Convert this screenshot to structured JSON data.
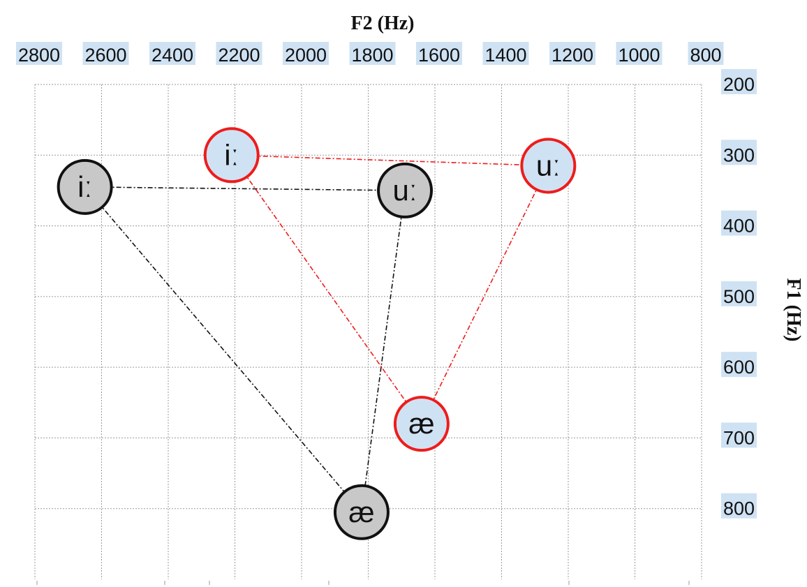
{
  "chart_data": {
    "type": "scatter",
    "title": "",
    "xlabel": "F2 (Hz)",
    "ylabel": "F1 (Hz)",
    "x_axis": {
      "reversed": true,
      "position": "top",
      "range": [
        2800,
        800
      ],
      "ticks": [
        2800,
        2600,
        2400,
        2200,
        2000,
        1800,
        1600,
        1400,
        1200,
        1000,
        800
      ]
    },
    "y_axis": {
      "reversed": true,
      "position": "right",
      "range": [
        200,
        900
      ],
      "ticks": [
        200,
        300,
        400,
        500,
        600,
        700,
        800
      ]
    },
    "grid": true,
    "tick_label_highlight": "#cfe2f3",
    "series": [
      {
        "color": "#111111",
        "fill": "#c8c8c8",
        "line_style": "dash-dot",
        "points": [
          {
            "label": "iː",
            "x": 2650,
            "y": 345
          },
          {
            "label": "uː",
            "x": 1690,
            "y": 350
          },
          {
            "label": "æ",
            "x": 1820,
            "y": 805
          }
        ],
        "connections": [
          [
            0,
            1
          ],
          [
            0,
            2
          ],
          [
            1,
            2
          ]
        ]
      },
      {
        "color": "#ee1c1c",
        "fill": "#cfe2f3",
        "line_style": "dash-dot",
        "points": [
          {
            "label": "iː",
            "x": 2210,
            "y": 300
          },
          {
            "label": "uː",
            "x": 1260,
            "y": 315
          },
          {
            "label": "æ",
            "x": 1640,
            "y": 680
          }
        ],
        "connections": [
          [
            0,
            1
          ],
          [
            0,
            2
          ],
          [
            1,
            2
          ]
        ]
      }
    ]
  }
}
